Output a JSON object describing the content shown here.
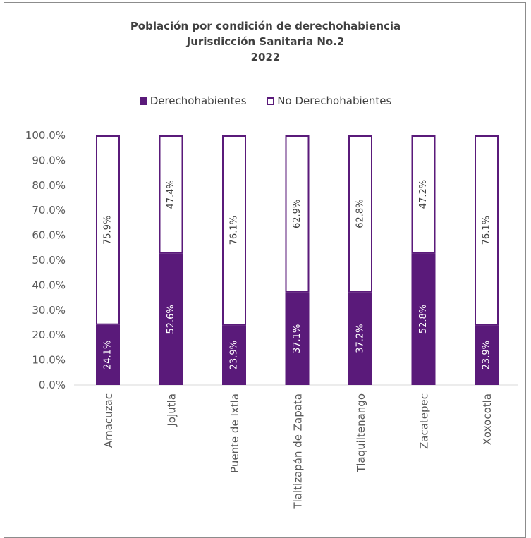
{
  "chart_data": {
    "type": "bar",
    "stacked": true,
    "title": "Población por condición de derechohabiencia",
    "subtitle": "Jurisdicción Sanitaria No.2",
    "year": "2022",
    "categories": [
      "Amacuzac",
      "Jojutla",
      "Puente de Ixtla",
      "Tlaltizapán de Zapata",
      "Tlaquiltenango",
      "Zacatepec",
      "Xoxocotla"
    ],
    "series": [
      {
        "name": "Derechohabientes",
        "values": [
          24.1,
          52.6,
          23.9,
          37.1,
          37.2,
          52.8,
          23.9
        ],
        "labels": [
          "24.1%",
          "52.6%",
          "23.9%",
          "37.1%",
          "37.2%",
          "52.8%",
          "23.9%"
        ],
        "color": "#5a1a7a"
      },
      {
        "name": "No Derechohabientes",
        "values": [
          75.9,
          47.4,
          76.1,
          62.9,
          62.8,
          47.2,
          76.1
        ],
        "labels": [
          "75.9%",
          "47.4%",
          "76.1%",
          "62.9%",
          "62.8%",
          "47.2%",
          "76.1%"
        ],
        "color": "#ffffff",
        "border": "#5a1a7a"
      }
    ],
    "ylim": [
      0,
      100
    ],
    "yticks": [
      "0.0%",
      "10.0%",
      "20.0%",
      "30.0%",
      "40.0%",
      "50.0%",
      "60.0%",
      "70.0%",
      "80.0%",
      "90.0%",
      "100.0%"
    ],
    "legend": "top",
    "grid": false
  }
}
